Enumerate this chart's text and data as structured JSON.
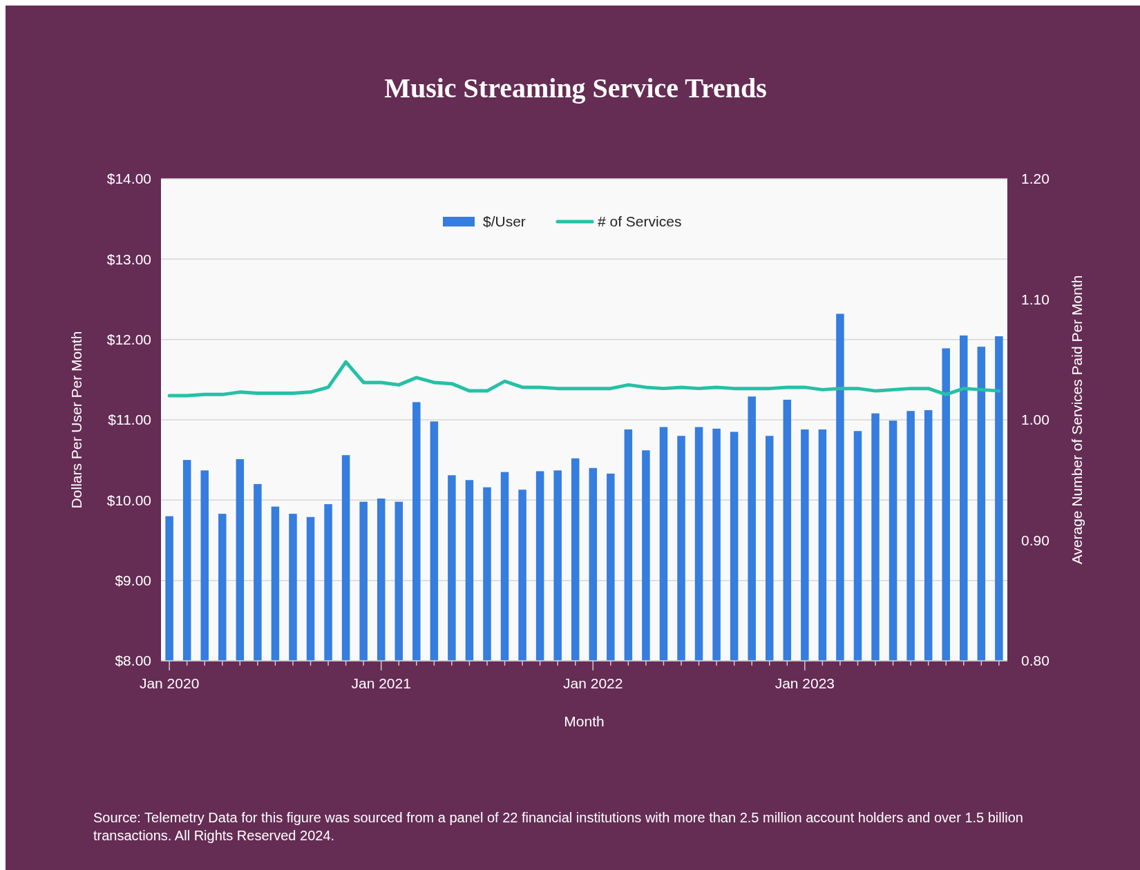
{
  "chart_data": {
    "type": "bar",
    "title": "Music Streaming Service Trends",
    "xlabel": "Month",
    "ylabel": "Dollars Per User Per Month",
    "y2label": "Average Number of Services Paid Per Month",
    "categories": [
      "Jan 2020",
      null,
      null,
      null,
      null,
      null,
      null,
      null,
      null,
      null,
      null,
      null,
      "Jan 2021",
      null,
      null,
      null,
      null,
      null,
      null,
      null,
      null,
      null,
      null,
      null,
      "Jan 2022",
      null,
      null,
      null,
      null,
      null,
      null,
      null,
      null,
      null,
      null,
      null,
      "Jan 2023",
      null,
      null,
      null,
      null,
      null,
      null,
      null,
      null,
      null,
      null,
      null
    ],
    "series": [
      {
        "name": "$/User",
        "color": "#357ddf",
        "values": [
          9.8,
          10.5,
          10.37,
          9.83,
          10.51,
          10.2,
          9.92,
          9.83,
          9.79,
          9.95,
          10.56,
          9.98,
          10.02,
          9.98,
          11.22,
          10.98,
          10.31,
          10.25,
          10.16,
          10.35,
          10.13,
          10.36,
          10.37,
          10.52,
          10.4,
          10.33,
          10.88,
          10.62,
          10.91,
          10.8,
          10.91,
          10.89,
          10.85,
          11.29,
          10.8,
          11.25,
          10.88,
          10.88,
          12.32,
          10.86,
          11.08,
          10.99,
          11.11,
          11.12,
          11.89,
          12.05,
          11.91,
          12.04
        ]
      },
      {
        "name": "# of Services",
        "type": "line",
        "axis": "y2",
        "color": "#26c0a6",
        "values": [
          1.02,
          1.02,
          1.021,
          1.021,
          1.023,
          1.022,
          1.022,
          1.022,
          1.023,
          1.027,
          1.048,
          1.031,
          1.031,
          1.029,
          1.035,
          1.031,
          1.03,
          1.024,
          1.024,
          1.032,
          1.027,
          1.027,
          1.026,
          1.026,
          1.026,
          1.026,
          1.029,
          1.027,
          1.026,
          1.027,
          1.026,
          1.027,
          1.026,
          1.026,
          1.026,
          1.027,
          1.027,
          1.025,
          1.026,
          1.026,
          1.024,
          1.025,
          1.026,
          1.026,
          1.021,
          1.026,
          1.025,
          1.024
        ]
      }
    ],
    "ylim": [
      8,
      14
    ],
    "yticks": [
      {
        "value": 8,
        "label": "$8.00"
      },
      {
        "value": 9,
        "label": "$9.00"
      },
      {
        "value": 10,
        "label": "$10.00"
      },
      {
        "value": 11,
        "label": "$11.00"
      },
      {
        "value": 12,
        "label": "$12.00"
      },
      {
        "value": 13,
        "label": "$13.00"
      },
      {
        "value": 14,
        "label": "$14.00"
      }
    ],
    "y2lim": [
      0.8,
      1.2
    ],
    "y2ticks": [
      {
        "value": 0.8,
        "label": "0.80"
      },
      {
        "value": 0.9,
        "label": "0.90"
      },
      {
        "value": 1.0,
        "label": "1.00"
      },
      {
        "value": 1.1,
        "label": "1.10"
      },
      {
        "value": 1.2,
        "label": "1.20"
      }
    ],
    "grid": "y",
    "legend": "top",
    "annotations": [
      "Source: Telemetry Data for this figure was sourced from a panel of 22 financial institutions with more than 2.5 million account holders and over 1.5 billion transactions. All Rights Reserved 2024."
    ]
  }
}
